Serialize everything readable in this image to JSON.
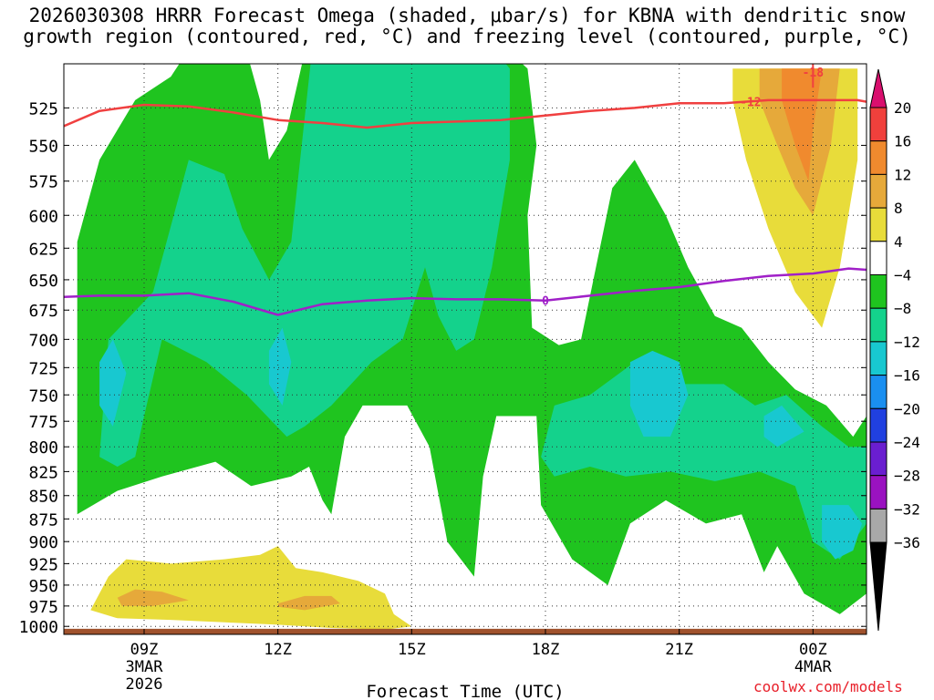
{
  "title": {
    "line1": "2026030308 HRRR Forecast Omega (shaded, μbar/s) for KBNA with dendritic snow",
    "line2": "growth region (contoured, red, °C) and freezing level (contoured, purple, °C)"
  },
  "credit": "coolwx.com/models",
  "chart_data": {
    "type": "contour",
    "xlabel": "Forecast Time (UTC)",
    "ylabel": "",
    "x_range_hours": [
      7.2,
      25.2
    ],
    "y_range_mb": [
      1010,
      497
    ],
    "y_ticks": [
      525,
      550,
      575,
      600,
      625,
      650,
      675,
      700,
      725,
      750,
      775,
      800,
      825,
      850,
      875,
      900,
      925,
      950,
      975,
      1000
    ],
    "x_ticks": [
      {
        "hour": 9,
        "label": "09Z",
        "date1": "3MAR",
        "date2": "2026"
      },
      {
        "hour": 12,
        "label": "12Z",
        "date1": "",
        "date2": ""
      },
      {
        "hour": 15,
        "label": "15Z",
        "date1": "",
        "date2": ""
      },
      {
        "hour": 18,
        "label": "18Z",
        "date1": "",
        "date2": ""
      },
      {
        "hour": 21,
        "label": "21Z",
        "date1": "",
        "date2": ""
      },
      {
        "hour": 24,
        "label": "00Z",
        "date1": "4MAR",
        "date2": ""
      }
    ],
    "grid": true,
    "colorbar": {
      "labels": [
        "20",
        "16",
        "12",
        "8",
        "4",
        "−4",
        "−8",
        "−12",
        "−16",
        "−20",
        "−24",
        "−28",
        "−32",
        "−36"
      ],
      "colors": [
        "#d90f6e",
        "#f0403c",
        "#f08a2e",
        "#e6a93a",
        "#e8dc3a",
        "#ffffff",
        "#1fc41f",
        "#14d28c",
        "#18c8d0",
        "#1a8ff0",
        "#2040e0",
        "#6a1ed0",
        "#9a12c0",
        "#a8a8a8",
        "#000000"
      ]
    },
    "omega_regions": [
      {
        "level": "-4 to -8",
        "color": "#1fc41f",
        "points": [
          [
            7.5,
            1000
          ],
          [
            7.5,
            620
          ],
          [
            8.0,
            560
          ],
          [
            8.8,
            520
          ],
          [
            9.6,
            505
          ],
          [
            10.2,
            480
          ],
          [
            11.2,
            480
          ],
          [
            11.6,
            520
          ],
          [
            11.8,
            560
          ],
          [
            12.2,
            540
          ],
          [
            12.6,
            490
          ],
          [
            13.6,
            480
          ],
          [
            14.6,
            480
          ],
          [
            15.8,
            480
          ],
          [
            16.8,
            480
          ],
          [
            17.6,
            500
          ],
          [
            17.8,
            550
          ],
          [
            17.6,
            600
          ],
          [
            17.7,
            690
          ],
          [
            18.3,
            705
          ],
          [
            18.8,
            700
          ],
          [
            19.5,
            580
          ],
          [
            20.0,
            560
          ],
          [
            20.7,
            600
          ],
          [
            21.2,
            640
          ],
          [
            21.8,
            680
          ],
          [
            22.4,
            690
          ],
          [
            23.0,
            720
          ],
          [
            23.6,
            745
          ],
          [
            24.3,
            760
          ],
          [
            24.9,
            790
          ],
          [
            25.2,
            770
          ],
          [
            25.2,
            960
          ],
          [
            24.6,
            985
          ],
          [
            23.8,
            960
          ],
          [
            23.2,
            905
          ],
          [
            22.9,
            935
          ],
          [
            22.4,
            870
          ],
          [
            21.6,
            880
          ],
          [
            20.7,
            855
          ],
          [
            19.9,
            880
          ],
          [
            19.4,
            950
          ],
          [
            18.6,
            920
          ],
          [
            17.9,
            860
          ],
          [
            17.8,
            770
          ],
          [
            16.9,
            770
          ],
          [
            16.6,
            830
          ],
          [
            16.4,
            940
          ],
          [
            15.8,
            900
          ],
          [
            15.4,
            800
          ],
          [
            14.9,
            760
          ],
          [
            13.9,
            760
          ],
          [
            13.5,
            790
          ],
          [
            13.2,
            870
          ],
          [
            13.0,
            855
          ],
          [
            12.7,
            820
          ],
          [
            12.3,
            830
          ],
          [
            11.4,
            840
          ],
          [
            10.6,
            815
          ],
          [
            9.4,
            830
          ],
          [
            8.4,
            845
          ],
          [
            7.5,
            870
          ],
          [
            7.5,
            1000
          ]
        ]
      },
      {
        "level": "-8 to -12",
        "color": "#14d28c",
        "points": [
          [
            8.0,
            810
          ],
          [
            8.2,
            700
          ],
          [
            9.2,
            660
          ],
          [
            10.0,
            560
          ],
          [
            10.8,
            570
          ],
          [
            11.2,
            610
          ],
          [
            11.8,
            650
          ],
          [
            12.3,
            620
          ],
          [
            12.8,
            480
          ],
          [
            15.6,
            480
          ],
          [
            16.6,
            480
          ],
          [
            17.2,
            500
          ],
          [
            17.2,
            560
          ],
          [
            16.8,
            640
          ],
          [
            16.4,
            700
          ],
          [
            16.0,
            710
          ],
          [
            15.6,
            680
          ],
          [
            15.3,
            640
          ],
          [
            14.8,
            700
          ],
          [
            14.1,
            720
          ],
          [
            13.2,
            760
          ],
          [
            12.6,
            780
          ],
          [
            12.2,
            790
          ],
          [
            11.3,
            750
          ],
          [
            10.4,
            720
          ],
          [
            9.4,
            700
          ],
          [
            9.0,
            770
          ],
          [
            8.8,
            810
          ],
          [
            8.4,
            820
          ],
          [
            8.0,
            810
          ]
        ]
      },
      {
        "level": "-8 to -12 (east)",
        "color": "#14d28c",
        "points": [
          [
            17.9,
            810
          ],
          [
            18.2,
            760
          ],
          [
            19.0,
            750
          ],
          [
            20.0,
            720
          ],
          [
            21.0,
            740
          ],
          [
            22.0,
            740
          ],
          [
            22.7,
            760
          ],
          [
            23.4,
            750
          ],
          [
            24.2,
            780
          ],
          [
            24.8,
            800
          ],
          [
            25.2,
            800
          ],
          [
            25.2,
            880
          ],
          [
            24.6,
            920
          ],
          [
            24.0,
            900
          ],
          [
            23.6,
            840
          ],
          [
            22.8,
            825
          ],
          [
            21.8,
            835
          ],
          [
            20.8,
            825
          ],
          [
            19.8,
            830
          ],
          [
            19.0,
            820
          ],
          [
            18.2,
            830
          ],
          [
            17.9,
            810
          ]
        ]
      },
      {
        "level": "-12 to -16",
        "color": "#18c8d0",
        "points": [
          [
            8.0,
            720
          ],
          [
            8.3,
            700
          ],
          [
            8.6,
            730
          ],
          [
            8.3,
            780
          ],
          [
            8.0,
            760
          ],
          [
            8.0,
            720
          ]
        ]
      },
      {
        "level": "-12 to -16",
        "color": "#18c8d0",
        "points": [
          [
            11.8,
            710
          ],
          [
            12.1,
            690
          ],
          [
            12.3,
            720
          ],
          [
            12.1,
            760
          ],
          [
            11.8,
            740
          ],
          [
            11.8,
            710
          ]
        ]
      },
      {
        "level": "-12 to -16",
        "color": "#18c8d0",
        "points": [
          [
            19.9,
            720
          ],
          [
            20.4,
            710
          ],
          [
            21.0,
            720
          ],
          [
            21.2,
            750
          ],
          [
            20.8,
            790
          ],
          [
            20.2,
            790
          ],
          [
            19.9,
            760
          ],
          [
            19.9,
            720
          ]
        ]
      },
      {
        "level": "-12 to -16",
        "color": "#18c8d0",
        "points": [
          [
            22.9,
            770
          ],
          [
            23.3,
            760
          ],
          [
            23.8,
            785
          ],
          [
            23.2,
            800
          ],
          [
            22.9,
            790
          ],
          [
            22.9,
            770
          ]
        ]
      },
      {
        "level": "-12 to -16",
        "color": "#18c8d0",
        "points": [
          [
            24.2,
            860
          ],
          [
            24.8,
            860
          ],
          [
            25.1,
            880
          ],
          [
            24.9,
            910
          ],
          [
            24.5,
            920
          ],
          [
            24.2,
            900
          ],
          [
            24.2,
            860
          ]
        ]
      },
      {
        "level": "4 to 8",
        "color": "#e8dc3a",
        "points": [
          [
            22.2,
            500
          ],
          [
            25.0,
            500
          ],
          [
            25.0,
            560
          ],
          [
            24.6,
            640
          ],
          [
            24.2,
            690
          ],
          [
            23.6,
            660
          ],
          [
            23.0,
            610
          ],
          [
            22.5,
            560
          ],
          [
            22.2,
            520
          ],
          [
            22.2,
            500
          ]
        ]
      },
      {
        "level": "8 to 12",
        "color": "#e6a93a",
        "points": [
          [
            22.8,
            500
          ],
          [
            24.6,
            500
          ],
          [
            24.4,
            550
          ],
          [
            24.0,
            600
          ],
          [
            23.6,
            580
          ],
          [
            23.2,
            550
          ],
          [
            22.8,
            520
          ],
          [
            22.8,
            500
          ]
        ]
      },
      {
        "level": "12 to 16",
        "color": "#f08a2e",
        "points": [
          [
            23.3,
            500
          ],
          [
            24.2,
            500
          ],
          [
            24.0,
            540
          ],
          [
            23.9,
            575
          ],
          [
            23.6,
            550
          ],
          [
            23.3,
            520
          ],
          [
            23.3,
            500
          ]
        ]
      },
      {
        "level": "4 to 8 (low)",
        "color": "#e8dc3a",
        "points": [
          [
            7.8,
            980
          ],
          [
            8.2,
            940
          ],
          [
            8.6,
            920
          ],
          [
            9.6,
            925
          ],
          [
            10.8,
            920
          ],
          [
            11.6,
            915
          ],
          [
            12.0,
            905
          ],
          [
            12.4,
            930
          ],
          [
            13.0,
            935
          ],
          [
            13.8,
            945
          ],
          [
            14.4,
            960
          ],
          [
            14.6,
            985
          ],
          [
            15.0,
            1000
          ],
          [
            14.4,
            1004
          ],
          [
            13.2,
            1002
          ],
          [
            12.0,
            998
          ],
          [
            10.8,
            995
          ],
          [
            9.6,
            992
          ],
          [
            8.4,
            990
          ],
          [
            7.8,
            980
          ]
        ]
      },
      {
        "level": "8 to 12 (low)",
        "color": "#e6a93a",
        "points": [
          [
            8.4,
            965
          ],
          [
            8.8,
            955
          ],
          [
            9.4,
            958
          ],
          [
            10.0,
            968
          ],
          [
            9.2,
            975
          ],
          [
            8.5,
            975
          ],
          [
            8.4,
            965
          ]
        ]
      },
      {
        "level": "8 to 12 (low)",
        "color": "#e6a93a",
        "points": [
          [
            12.0,
            972
          ],
          [
            12.6,
            963
          ],
          [
            13.2,
            963
          ],
          [
            13.4,
            972
          ],
          [
            12.6,
            980
          ],
          [
            12.0,
            976
          ],
          [
            12.0,
            972
          ]
        ]
      }
    ],
    "dgz_contour": {
      "label": "-12",
      "color": "#f04040",
      "points": [
        [
          7.2,
          537
        ],
        [
          8.0,
          527
        ],
        [
          9.0,
          523
        ],
        [
          10.0,
          524
        ],
        [
          11.0,
          528
        ],
        [
          12.0,
          533
        ],
        [
          13.0,
          535
        ],
        [
          14.0,
          538
        ],
        [
          15.0,
          535
        ],
        [
          16.0,
          534
        ],
        [
          17.0,
          533
        ],
        [
          18.0,
          530
        ],
        [
          19.0,
          527
        ],
        [
          20.0,
          525
        ],
        [
          21.0,
          522
        ],
        [
          22.0,
          522
        ],
        [
          23.0,
          520
        ],
        [
          24.0,
          520
        ],
        [
          25.0,
          520
        ],
        [
          25.2,
          521
        ]
      ],
      "label_at": [
        22.6,
        521
      ]
    },
    "dgz_contour_top": {
      "label": "-18",
      "color": "#f04040",
      "points": [
        [
          24.0,
          497
        ],
        [
          24.0,
          512
        ]
      ],
      "label_at": [
        24.0,
        502
      ]
    },
    "freezing_level": {
      "label": "0",
      "color": "#a020c8",
      "points": [
        [
          7.2,
          664
        ],
        [
          8.0,
          663
        ],
        [
          9.0,
          663
        ],
        [
          10.0,
          661
        ],
        [
          11.0,
          668
        ],
        [
          12.0,
          679
        ],
        [
          13.0,
          670
        ],
        [
          14.0,
          667
        ],
        [
          15.0,
          665
        ],
        [
          16.0,
          666
        ],
        [
          17.0,
          666
        ],
        [
          18.0,
          667
        ],
        [
          19.0,
          663
        ],
        [
          20.0,
          659
        ],
        [
          21.0,
          656
        ],
        [
          22.0,
          651
        ],
        [
          23.0,
          647
        ],
        [
          24.0,
          645
        ],
        [
          24.8,
          641
        ],
        [
          25.2,
          642
        ]
      ],
      "label_at": [
        18.0,
        667
      ]
    },
    "terrain_color": "#a0522d"
  }
}
